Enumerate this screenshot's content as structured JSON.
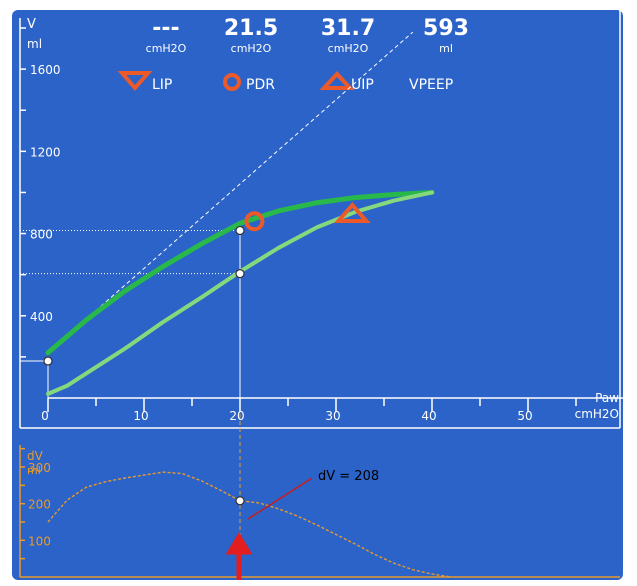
{
  "colors": {
    "background": "#2b63c8",
    "frame": "#ffffff",
    "inflation_curve": "#29b84a",
    "deflation_curve": "#86d87c",
    "marker_orange": "#ec5a2a",
    "lower_panel_accent": "#e89a2a"
  },
  "readouts": [
    {
      "value": "---",
      "unit": "cmH2O"
    },
    {
      "value": "21.5",
      "unit": "cmH2O"
    },
    {
      "value": "31.7",
      "unit": "cmH2O"
    },
    {
      "value": "593",
      "unit": "ml"
    }
  ],
  "legend": [
    {
      "icon": "triangle-down-icon",
      "label": "LIP"
    },
    {
      "icon": "circle-icon",
      "label": "PDR"
    },
    {
      "icon": "triangle-up-icon",
      "label": "UIP"
    },
    {
      "icon": "none",
      "label": "VPEEP"
    }
  ],
  "dv_annotation": "dV = 208",
  "chart_data": [
    {
      "type": "line",
      "title": "",
      "xlabel": "Paw",
      "xunit": "cmH2O",
      "ylabel": "V",
      "yunit": "ml",
      "xlim": [
        0,
        60
      ],
      "ylim": [
        0,
        1800
      ],
      "xticks": [
        "0",
        "10",
        "20",
        "30",
        "40",
        "50"
      ],
      "yticks": [
        "400",
        "800",
        "1200",
        "1600"
      ],
      "series": [
        {
          "x": [
            0,
            4,
            8,
            12,
            16,
            20,
            24,
            28,
            32,
            36,
            40
          ],
          "y": [
            220,
            380,
            520,
            640,
            750,
            850,
            910,
            950,
            975,
            990,
            1000
          ]
        },
        {
          "x": [
            0,
            2,
            4,
            8,
            12,
            16,
            20,
            24,
            28,
            32,
            36,
            40
          ],
          "y": [
            20,
            60,
            120,
            240,
            370,
            490,
            615,
            730,
            830,
            905,
            960,
            1000
          ]
        }
      ],
      "reference_line": {
        "x": [
          0,
          38
        ],
        "y": [
          220,
          1780
        ]
      },
      "markers": {
        "LIP": null,
        "PDR": {
          "x": 21.5,
          "y": 860
        },
        "UIP": {
          "x": 31.7,
          "y": 900
        }
      },
      "cursor_x": 20,
      "cursor_levels": [
        815,
        605
      ],
      "origin_point": {
        "x": 0,
        "y": 180
      }
    },
    {
      "type": "line",
      "title": "",
      "ylabel": "dV",
      "yunit": "ml",
      "ylim": [
        0,
        360
      ],
      "yticks": [
        "100",
        "200",
        "300"
      ],
      "series": [
        {
          "x": [
            0,
            2,
            4,
            6,
            8,
            10,
            12,
            14,
            16,
            18,
            20,
            22,
            24,
            26,
            28,
            30,
            32,
            34,
            36,
            38,
            40,
            42
          ],
          "y": [
            150,
            210,
            245,
            260,
            270,
            278,
            286,
            282,
            262,
            236,
            208,
            202,
            186,
            166,
            142,
            116,
            90,
            62,
            38,
            20,
            8,
            0
          ]
        }
      ],
      "cursor_point": {
        "x": 20,
        "y": 208
      }
    }
  ]
}
